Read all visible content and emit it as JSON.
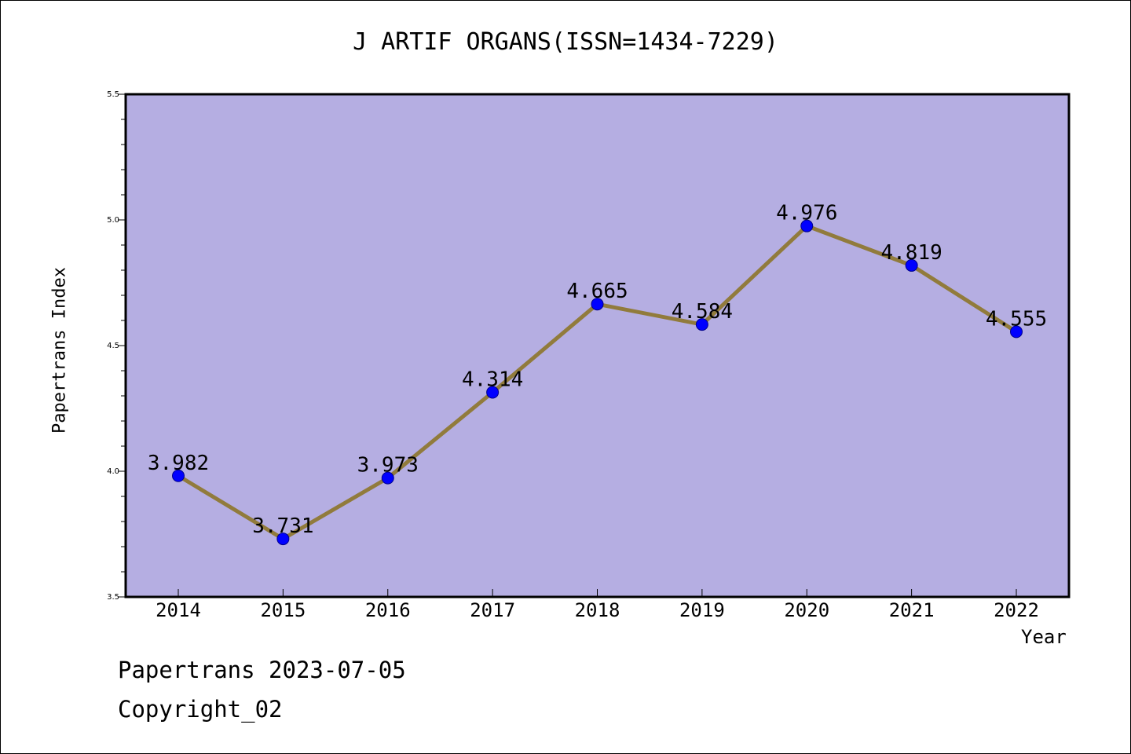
{
  "chart_data": {
    "type": "line",
    "title": "J ARTIF ORGANS(ISSN=1434-7229)",
    "xlabel": "Year",
    "ylabel": "Papertrans Index",
    "categories": [
      "2014",
      "2015",
      "2016",
      "2017",
      "2018",
      "2019",
      "2020",
      "2021",
      "2022"
    ],
    "series": [
      {
        "values": [
          3.982,
          3.731,
          3.973,
          4.314,
          4.665,
          4.584,
          4.976,
          4.819,
          4.555
        ],
        "labels": [
          "3.982",
          "3.731",
          "3.973",
          "4.314",
          "4.665",
          "4.584",
          "4.976",
          "4.819",
          "4.555"
        ]
      }
    ],
    "ylim": [
      3.5,
      5.5
    ],
    "yticks": [
      "3.5",
      "4.0",
      "4.5",
      "5.0",
      "5.5"
    ],
    "grid": false,
    "colors": {
      "plot_background": "#b5aee2",
      "line": "#917b3c",
      "marker": "#0000ff"
    }
  },
  "footer": {
    "line1": "Papertrans 2023-07-05",
    "line2": "Copyright_02"
  }
}
